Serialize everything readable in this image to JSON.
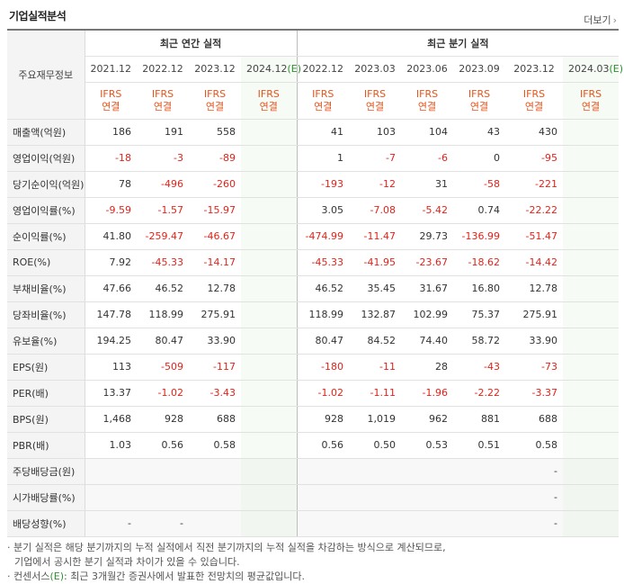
{
  "section_title": "기업실적분석",
  "more_link": "더보기",
  "table": {
    "header_label": "주요재무정보",
    "annual_group": "최근 연간 실적",
    "quarter_group": "최근 분기 실적",
    "annual_years": [
      "2021.12",
      "2022.12",
      "2023.12",
      "2024.12"
    ],
    "annual_est_suffix": "(E)",
    "quarter_years": [
      "2022.12",
      "2023.03",
      "2023.06",
      "2023.09",
      "2023.12",
      "2024.03"
    ],
    "quarter_est_suffix": "(E)",
    "ifrs_line1": "IFRS",
    "ifrs_line2": "연결",
    "rows": [
      {
        "label": "매출액(억원)",
        "a": [
          "186",
          "191",
          "558",
          ""
        ],
        "q": [
          "41",
          "103",
          "104",
          "43",
          "430",
          ""
        ]
      },
      {
        "label": "영업이익(억원)",
        "a": [
          "-18",
          "-3",
          "-89",
          ""
        ],
        "q": [
          "1",
          "-7",
          "-6",
          "0",
          "-95",
          ""
        ]
      },
      {
        "label": "당기순이익(억원)",
        "a": [
          "78",
          "-496",
          "-260",
          ""
        ],
        "q": [
          "-193",
          "-12",
          "31",
          "-58",
          "-221",
          ""
        ]
      },
      {
        "label": "영업이익률(%)",
        "a": [
          "-9.59",
          "-1.57",
          "-15.97",
          ""
        ],
        "q": [
          "3.05",
          "-7.08",
          "-5.42",
          "0.74",
          "-22.22",
          ""
        ]
      },
      {
        "label": "순이익률(%)",
        "a": [
          "41.80",
          "-259.47",
          "-46.67",
          ""
        ],
        "q": [
          "-474.99",
          "-11.47",
          "29.73",
          "-136.99",
          "-51.47",
          ""
        ]
      },
      {
        "label": "ROE(%)",
        "a": [
          "7.92",
          "-45.33",
          "-14.17",
          ""
        ],
        "q": [
          "-45.33",
          "-41.95",
          "-23.67",
          "-18.62",
          "-14.42",
          ""
        ]
      },
      {
        "label": "부채비율(%)",
        "a": [
          "47.66",
          "46.52",
          "12.78",
          ""
        ],
        "q": [
          "46.52",
          "35.45",
          "31.67",
          "16.80",
          "12.78",
          ""
        ]
      },
      {
        "label": "당좌비율(%)",
        "a": [
          "147.78",
          "118.99",
          "275.91",
          ""
        ],
        "q": [
          "118.99",
          "132.87",
          "102.99",
          "75.37",
          "275.91",
          ""
        ]
      },
      {
        "label": "유보율(%)",
        "a": [
          "194.25",
          "80.47",
          "33.90",
          ""
        ],
        "q": [
          "80.47",
          "84.52",
          "74.40",
          "58.72",
          "33.90",
          ""
        ]
      },
      {
        "label": "EPS(원)",
        "a": [
          "113",
          "-509",
          "-117",
          ""
        ],
        "q": [
          "-180",
          "-11",
          "28",
          "-43",
          "-73",
          ""
        ]
      },
      {
        "label": "PER(배)",
        "a": [
          "13.37",
          "-1.02",
          "-3.43",
          ""
        ],
        "q": [
          "-1.02",
          "-1.11",
          "-1.96",
          "-2.22",
          "-3.37",
          ""
        ]
      },
      {
        "label": "BPS(원)",
        "a": [
          "1,468",
          "928",
          "688",
          ""
        ],
        "q": [
          "928",
          "1,019",
          "962",
          "881",
          "688",
          ""
        ]
      },
      {
        "label": "PBR(배)",
        "a": [
          "1.03",
          "0.56",
          "0.58",
          ""
        ],
        "q": [
          "0.56",
          "0.50",
          "0.53",
          "0.51",
          "0.58",
          ""
        ]
      },
      {
        "label": "주당배당금(원)",
        "a": [
          "",
          "",
          "",
          ""
        ],
        "q": [
          "",
          "",
          "",
          "",
          "-",
          ""
        ]
      },
      {
        "label": "시가배당률(%)",
        "a": [
          "",
          "",
          "",
          ""
        ],
        "q": [
          "",
          "",
          "",
          "",
          "-",
          ""
        ]
      },
      {
        "label": "배당성향(%)",
        "a": [
          "-",
          "-",
          "",
          ""
        ],
        "q": [
          "",
          "",
          "",
          "",
          "-",
          ""
        ]
      }
    ]
  },
  "notes": {
    "line1": "· 분기 실적은 해당 분기까지의 누적 실적에서 직전 분기까지의 누적 실적을 차감하는 방식으로 계산되므로,",
    "line2": "기업에서 공시한 분기 실적과 차이가 있을 수 있습니다.",
    "line3_prefix": "· 컨센서스",
    "line3_mark": "(E)",
    "line3_suffix": ": 최근 3개월간 증권사에서 발표한 전망치의 평균값입니다."
  },
  "colors": {
    "negative": "#e2231a",
    "ifrs": "#e8541c",
    "estimate_bg": "#f6fbf6"
  }
}
